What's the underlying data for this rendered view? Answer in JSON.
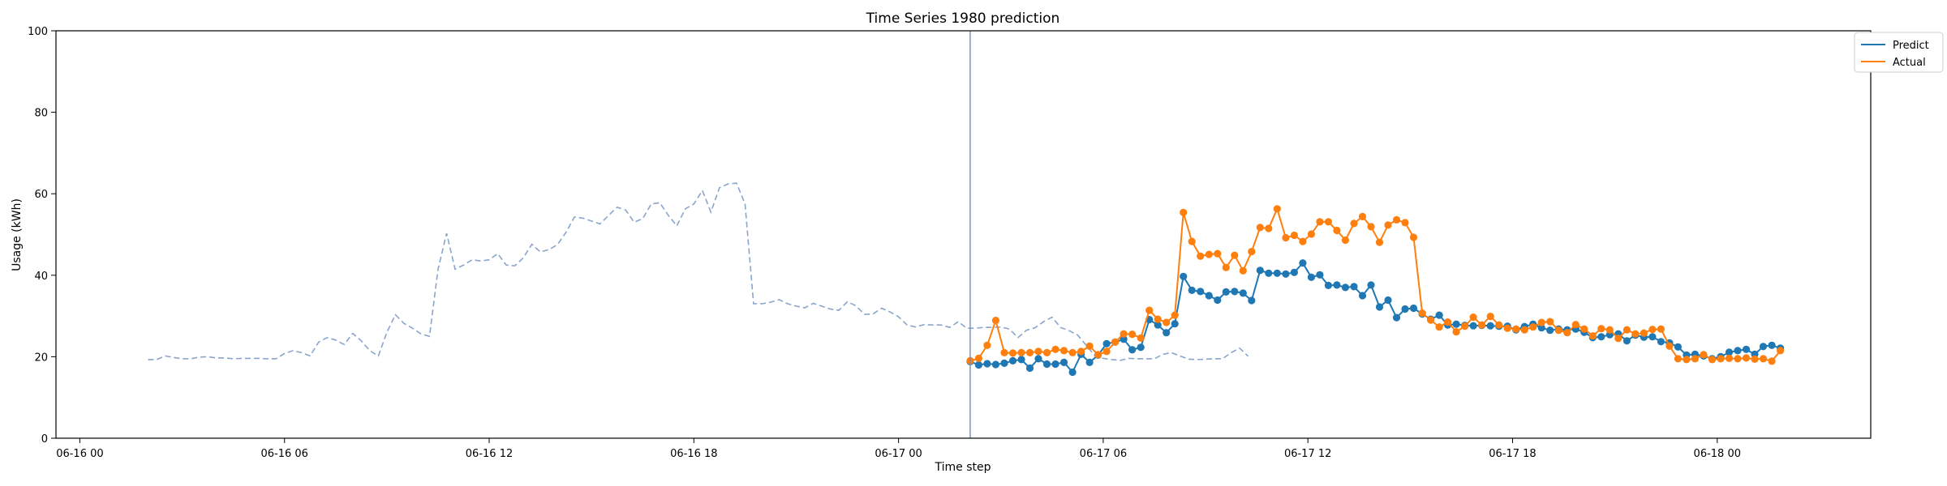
{
  "chart_data": {
    "type": "line",
    "title": "Time Series 1980 prediction",
    "xlabel": "Time step",
    "ylabel": "Usage (kWh)",
    "ylim": [
      0,
      100
    ],
    "xlim_hours": [
      -0.7,
      52.5
    ],
    "x_ticks": [
      {
        "label": "06-16 00",
        "hour": 0
      },
      {
        "label": "06-16 06",
        "hour": 6
      },
      {
        "label": "06-16 12",
        "hour": 12
      },
      {
        "label": "06-16 18",
        "hour": 18
      },
      {
        "label": "06-17 00",
        "hour": 24
      },
      {
        "label": "06-17 06",
        "hour": 30
      },
      {
        "label": "06-17 12",
        "hour": 36
      },
      {
        "label": "06-17 18",
        "hour": 42
      },
      {
        "label": "06-18 00",
        "hour": 48
      }
    ],
    "y_ticks": [
      0,
      20,
      40,
      60,
      80,
      100
    ],
    "grid": false,
    "legend_position": "outside top-right",
    "prediction_start_hour": 26.1,
    "history": {
      "color": "#8aa4cc",
      "style": "dashed",
      "x_start_hour": 2.0,
      "x_step_hours": 0.25,
      "values": [
        19.3,
        19.3,
        20.2,
        19.8,
        19.5,
        19.5,
        19.9,
        20.0,
        19.7,
        19.7,
        19.5,
        19.6,
        19.6,
        19.6,
        19.5,
        19.5,
        20.8,
        21.5,
        21.0,
        20.2,
        23.6,
        24.7,
        24.1,
        23.0,
        25.7,
        23.9,
        21.5,
        20.2,
        26.0,
        30.3,
        28.2,
        27.0,
        25.6,
        25.0,
        41.4,
        50.3,
        41.5,
        42.5,
        43.8,
        43.5,
        43.8,
        45.3,
        42.5,
        42.3,
        44.3,
        47.6,
        45.7,
        46.3,
        47.5,
        50.5,
        54.3,
        54.0,
        53.3,
        52.6,
        54.7,
        56.7,
        56.0,
        53.0,
        53.9,
        57.5,
        57.8,
        54.7,
        52.1,
        56.3,
        57.5,
        60.8,
        55.5,
        61.5,
        62.4,
        62.6,
        57.5,
        33.0,
        33.0,
        33.4,
        34.0,
        33.0,
        32.4,
        32.0,
        33.1,
        32.4,
        31.7,
        31.4,
        33.5,
        32.5,
        30.4,
        30.5,
        31.9,
        31.0,
        29.8,
        27.8,
        27.3,
        27.9,
        27.8,
        27.8,
        27.2,
        28.6,
        27.0,
        27.0,
        27.2,
        27.2,
        27.3,
        26.8,
        24.7,
        26.5,
        27.1,
        28.6,
        29.7,
        27.2,
        26.4,
        25.3,
        22.8,
        20.3,
        19.6,
        19.3,
        19.1,
        19.6,
        19.5,
        19.5,
        19.5,
        20.6,
        21.0,
        20.2,
        19.4,
        19.3,
        19.4,
        19.5,
        19.5,
        21.0,
        22.1,
        20.1
      ]
    },
    "series": [
      {
        "name": "Predict",
        "color": "#1f77b4",
        "x_start_hour": 26.1,
        "x_step_hours": 0.25,
        "values": [
          18.8,
          18.0,
          18.3,
          18.1,
          18.4,
          19.0,
          19.3,
          17.2,
          19.5,
          18.2,
          18.2,
          18.6,
          16.2,
          20.6,
          18.6,
          20.4,
          23.2,
          23.6,
          24.3,
          21.7,
          22.3,
          29.1,
          27.8,
          25.9,
          28.1,
          39.7,
          36.3,
          36.0,
          35.0,
          33.9,
          35.9,
          36.0,
          35.6,
          33.8,
          41.2,
          40.5,
          40.5,
          40.3,
          40.7,
          43.0,
          39.5,
          40.1,
          37.5,
          37.6,
          37.0,
          37.2,
          35.0,
          37.6,
          32.2,
          33.9,
          29.6,
          31.7,
          31.9,
          30.5,
          29.2,
          30.2,
          27.8,
          28.0,
          27.7,
          27.6,
          27.7,
          27.6,
          27.5,
          27.5,
          26.6,
          27.4,
          28.0,
          27.1,
          26.5,
          26.8,
          26.6,
          26.8,
          26.0,
          24.7,
          24.9,
          25.4,
          25.6,
          23.9,
          25.3,
          24.8,
          24.9,
          23.7,
          23.4,
          22.4,
          20.4,
          20.6,
          20.2,
          19.5,
          20.0,
          21.1,
          21.5,
          21.8,
          20.6,
          22.5,
          22.8,
          22.1
        ]
      },
      {
        "name": "Actual",
        "color": "#ff7f0e",
        "x_start_hour": 26.1,
        "x_step_hours": 0.25,
        "values": [
          19.0,
          19.6,
          22.8,
          28.9,
          21.0,
          20.9,
          21.0,
          21.0,
          21.3,
          21.0,
          21.8,
          21.5,
          21.0,
          21.3,
          22.6,
          20.5,
          21.3,
          23.6,
          25.6,
          25.5,
          24.6,
          31.4,
          29.2,
          28.4,
          30.2,
          55.4,
          48.3,
          44.7,
          45.1,
          45.3,
          41.9,
          44.9,
          41.1,
          45.8,
          51.7,
          51.5,
          56.3,
          49.2,
          49.8,
          48.3,
          50.1,
          53.1,
          53.1,
          51.0,
          48.6,
          52.7,
          54.4,
          51.9,
          48.1,
          52.3,
          53.6,
          52.9,
          49.3,
          30.7,
          29.0,
          27.3,
          28.5,
          26.1,
          27.5,
          29.7,
          27.8,
          29.9,
          27.8,
          27.0,
          26.8,
          26.6,
          27.3,
          28.4,
          28.6,
          26.5,
          25.9,
          27.9,
          26.8,
          25.1,
          26.9,
          26.6,
          24.5,
          26.6,
          25.6,
          25.8,
          26.7,
          26.8,
          22.6,
          19.5,
          19.3,
          19.5,
          20.5,
          19.3,
          19.5,
          19.6,
          19.5,
          19.7,
          19.4,
          19.5,
          18.9,
          21.5
        ]
      }
    ]
  }
}
